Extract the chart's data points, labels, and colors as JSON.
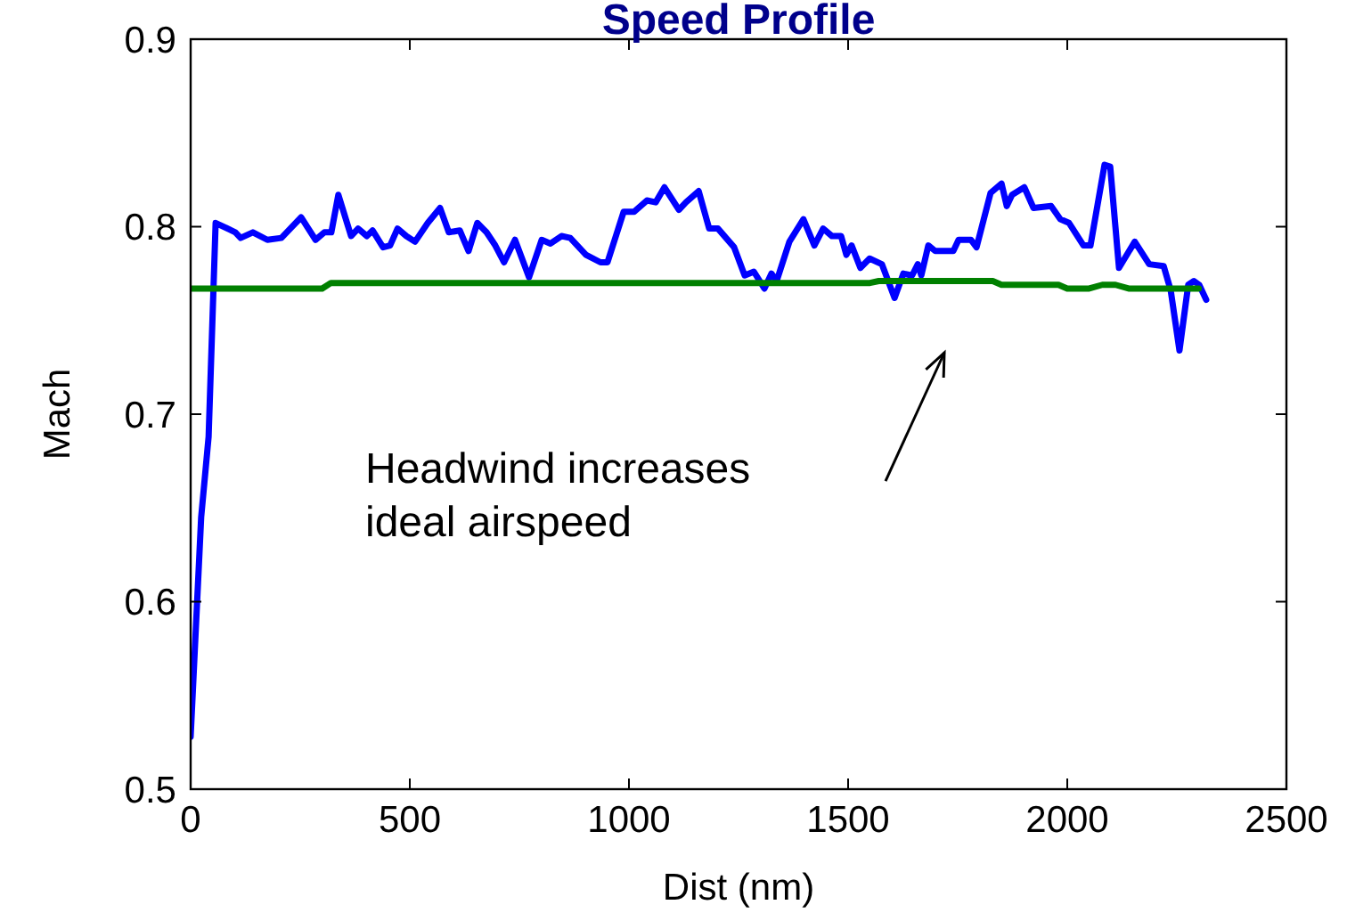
{
  "chart_data": {
    "type": "line",
    "title": "Speed Profile",
    "xlabel": "Dist (nm)",
    "ylabel": "Mach",
    "xlim": [
      0,
      2500
    ],
    "xticks": [
      0,
      500,
      1000,
      1500,
      2000,
      2500
    ],
    "ylim": [
      0.5,
      0.9
    ],
    "yticks": [
      0.5,
      0.6,
      0.7,
      0.8,
      0.9
    ],
    "grid": false,
    "annotations": [
      "Headwind increases ideal airspeed"
    ],
    "series": [
      {
        "color": "#0000ff",
        "x": [
          0,
          24,
          41,
          57,
          102,
          114,
          142,
          175,
          207,
          252,
          285,
          305,
          321,
          337,
          366,
          382,
          402,
          415,
          439,
          455,
          472,
          492,
          512,
          541,
          569,
          589,
          614,
          634,
          654,
          675,
          695,
          715,
          740,
          772,
          801,
          821,
          846,
          866,
          902,
          935,
          951,
          988,
          1012,
          1041,
          1061,
          1081,
          1114,
          1130,
          1159,
          1183,
          1203,
          1240,
          1264,
          1285,
          1309,
          1325,
          1337,
          1366,
          1398,
          1423,
          1443,
          1463,
          1484,
          1496,
          1508,
          1528,
          1549,
          1577,
          1606,
          1626,
          1646,
          1659,
          1667,
          1683,
          1699,
          1740,
          1752,
          1780,
          1793,
          1825,
          1850,
          1862,
          1874,
          1902,
          1923,
          1963,
          1984,
          2004,
          2037,
          2053,
          2085,
          2098,
          2118,
          2154,
          2187,
          2220,
          2236,
          2256,
          2276,
          2289,
          2301,
          2317
        ],
        "values": [
          0.528,
          0.645,
          0.688,
          0.802,
          0.797,
          0.794,
          0.797,
          0.793,
          0.794,
          0.805,
          0.793,
          0.797,
          0.797,
          0.817,
          0.795,
          0.799,
          0.795,
          0.798,
          0.789,
          0.79,
          0.799,
          0.795,
          0.792,
          0.802,
          0.81,
          0.797,
          0.798,
          0.787,
          0.802,
          0.797,
          0.79,
          0.781,
          0.793,
          0.773,
          0.793,
          0.791,
          0.795,
          0.794,
          0.785,
          0.781,
          0.781,
          0.808,
          0.808,
          0.814,
          0.813,
          0.821,
          0.809,
          0.813,
          0.819,
          0.799,
          0.799,
          0.789,
          0.774,
          0.776,
          0.767,
          0.775,
          0.771,
          0.792,
          0.804,
          0.79,
          0.799,
          0.795,
          0.795,
          0.785,
          0.79,
          0.778,
          0.783,
          0.78,
          0.762,
          0.775,
          0.774,
          0.78,
          0.774,
          0.79,
          0.787,
          0.787,
          0.793,
          0.793,
          0.789,
          0.818,
          0.823,
          0.811,
          0.817,
          0.821,
          0.81,
          0.811,
          0.804,
          0.802,
          0.79,
          0.79,
          0.833,
          0.832,
          0.778,
          0.792,
          0.78,
          0.779,
          0.766,
          0.734,
          0.769,
          0.771,
          0.769,
          0.761
        ]
      },
      {
        "color": "#008000",
        "x": [
          0,
          300,
          320,
          1550,
          1570,
          1830,
          1850,
          1980,
          2000,
          2050,
          2080,
          2110,
          2140,
          2300
        ],
        "values": [
          0.767,
          0.767,
          0.77,
          0.77,
          0.771,
          0.771,
          0.769,
          0.769,
          0.767,
          0.767,
          0.769,
          0.769,
          0.767,
          0.767
        ]
      }
    ]
  }
}
